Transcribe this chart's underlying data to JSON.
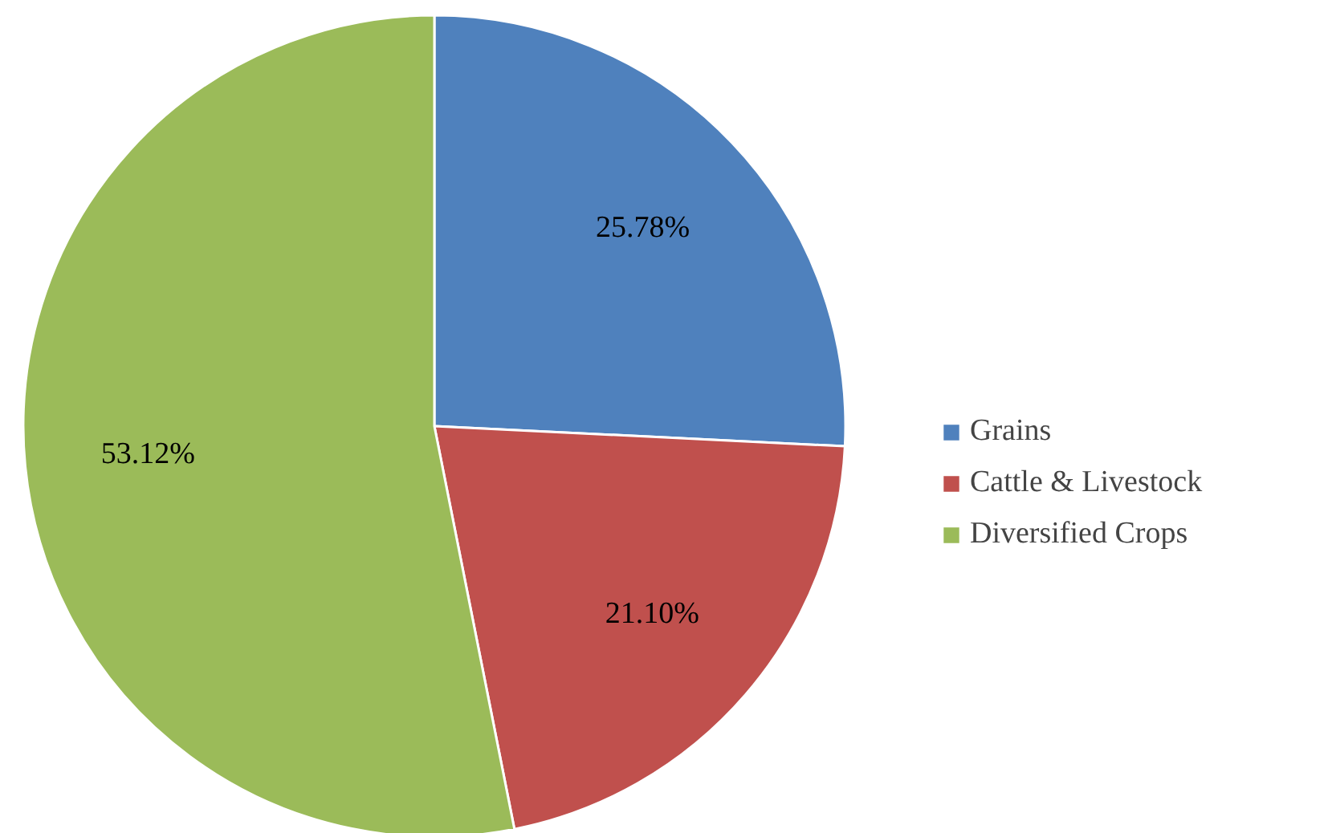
{
  "chart_data": {
    "type": "pie",
    "categories": [
      "Grains",
      "Cattle & Livestock",
      "Diversified Crops"
    ],
    "values": [
      25.78,
      21.1,
      53.12
    ],
    "colors": [
      "#4f81bd",
      "#c0504d",
      "#9bbb59"
    ],
    "value_labels": [
      "25.78%",
      "21.10%",
      "53.12%"
    ],
    "legend": "right"
  }
}
